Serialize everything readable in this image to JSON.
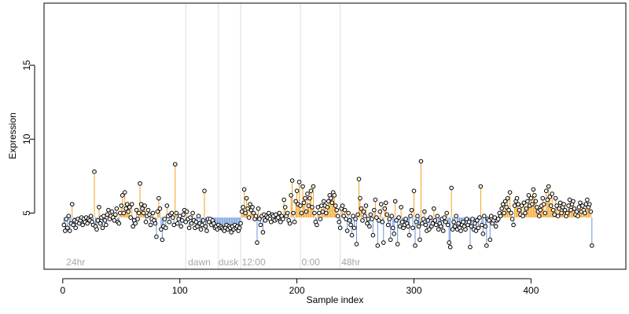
{
  "chart_data": {
    "type": "scatter",
    "title": "",
    "xlabel": "Sample index",
    "ylabel": "Expression",
    "xlim": [
      -16,
      481
    ],
    "ylim": [
      1.2,
      19.2
    ],
    "xticks": [
      0,
      100,
      200,
      300,
      400
    ],
    "yticks": [
      5,
      10,
      15
    ],
    "baseline": 4.7,
    "colors": {
      "above": "#f5a020",
      "below": "#6a95d8",
      "point_fill": "#ffffff",
      "point_stroke": "#000000",
      "divider": "#dddddd",
      "phase_text": "#a6a6a6"
    },
    "phase_dividers": [
      105,
      133,
      152,
      203,
      237
    ],
    "phase_labels": [
      {
        "x": 3,
        "text": "24hr"
      },
      {
        "x": 107,
        "text": "dawn"
      },
      {
        "x": 133,
        "text": "dusk"
      },
      {
        "x": 153,
        "text": "12:00"
      },
      {
        "x": 204,
        "text": "0:00"
      },
      {
        "x": 238,
        "text": "48hr"
      }
    ],
    "grid": false,
    "legend": "none",
    "series": [
      {
        "values": [
          4.2,
          3.8,
          4.6,
          4.0,
          4.8,
          3.8,
          4.3,
          5.6,
          4.2,
          4.5,
          4.0,
          4.4,
          4.6,
          4.3,
          4.5,
          4.7,
          4.2,
          4.6,
          4.4,
          4.7,
          4.3,
          4.6,
          4.5,
          4.8,
          4.4,
          4.2,
          7.8,
          4.1,
          3.9,
          4.5,
          5.4,
          4.3,
          4.7,
          4.0,
          4.8,
          4.5,
          4.2,
          4.9,
          5.2,
          4.6,
          4.8,
          5.1,
          4.7,
          4.5,
          4.9,
          5.3,
          4.4,
          4.3,
          5.0,
          5.5,
          6.2,
          5.0,
          6.4,
          5.3,
          5.6,
          5.1,
          5.4,
          4.7,
          5.6,
          4.1,
          4.5,
          4.3,
          5.2,
          4.6,
          5.0,
          7.0,
          5.6,
          5.3,
          5.0,
          5.5,
          4.4,
          4.8,
          5.2,
          4.9,
          4.2,
          4.6,
          5.0,
          4.5,
          4.3,
          3.4,
          5.1,
          6.0,
          5.3,
          3.9,
          3.2,
          4.1,
          4.6,
          4.0,
          5.5,
          4.8,
          4.4,
          4.9,
          5.0,
          4.7,
          4.2,
          8.3,
          5.0,
          4.3,
          4.6,
          4.8,
          4.1,
          4.5,
          4.9,
          5.2,
          4.4,
          5.1,
          4.6,
          4.0,
          4.7,
          4.3,
          5.0,
          4.5,
          4.0,
          4.4,
          4.1,
          4.8,
          4.3,
          3.9,
          4.2,
          4.5,
          6.5,
          4.1,
          3.8,
          4.6,
          4.4,
          4.6,
          4.2,
          4.5,
          4.3,
          4.0,
          4.1,
          3.9,
          4.2,
          4.0,
          4.1,
          4.0,
          3.9,
          3.8,
          4.0,
          4.2,
          3.9,
          4.1,
          4.0,
          3.7,
          4.1,
          3.9,
          4.2,
          4.0,
          4.1,
          3.8,
          4.0,
          4.3,
          5.1,
          5.4,
          6.6,
          5.0,
          6.0,
          5.3,
          4.7,
          5.6,
          5.2,
          5.4,
          5.0,
          4.6,
          4.8,
          3.0,
          5.3,
          4.6,
          4.2,
          4.8,
          3.7,
          4.9,
          4.5,
          4.8,
          4.7,
          5.0,
          4.6,
          4.4,
          4.9,
          4.8,
          4.5,
          4.9,
          4.6,
          4.7,
          5.0,
          4.4,
          4.8,
          4.6,
          5.9,
          5.4,
          4.8,
          5.0,
          4.5,
          4.3,
          6.2,
          7.2,
          5.0,
          4.4,
          5.8,
          6.5,
          5.6,
          7.1,
          5.5,
          5.0,
          6.8,
          5.7,
          6.0,
          5.1,
          6.3,
          5.5,
          6.0,
          6.5,
          5.4,
          6.8,
          5.0,
          4.4,
          4.2,
          5.4,
          5.0,
          4.6,
          5.5,
          5.1,
          5.8,
          5.5,
          5.0,
          5.4,
          5.8,
          6.2,
          6.0,
          5.7,
          6.4,
          6.2,
          5.5,
          5.2,
          4.8,
          4.4,
          4.0,
          5.3,
          5.5,
          4.8,
          5.2,
          4.6,
          3.8,
          5.0,
          4.5,
          4.2,
          3.5,
          4.8,
          4.0,
          4.6,
          2.9,
          4.9,
          7.3,
          6.0,
          5.3,
          4.5,
          5.1,
          4.8,
          5.5,
          4.3,
          4.6,
          4.1,
          4.9,
          4.6,
          3.5,
          5.2,
          5.9,
          4.7,
          2.8,
          4.5,
          5.1,
          5.6,
          4.4,
          3.0,
          5.3,
          5.7,
          4.9,
          4.2,
          4.6,
          3.2,
          4.8,
          4.0,
          3.6,
          5.8,
          4.5,
          2.9,
          4.7,
          4.1,
          5.4,
          4.4,
          4.0,
          4.2,
          4.6,
          4.3,
          4.1,
          3.5,
          4.8,
          5.2,
          4.0,
          6.5,
          2.8,
          4.4,
          4.8,
          4.1,
          3.2,
          8.5,
          4.3,
          4.6,
          5.1,
          4.2,
          3.8,
          4.5,
          3.9,
          4.7,
          4.1,
          4.3,
          5.3,
          4.5,
          4.2,
          4.8,
          3.9,
          4.3,
          4.1,
          4.6,
          3.8,
          4.7,
          4.4,
          5.0,
          4.2,
          3.0,
          2.7,
          6.7,
          3.9,
          4.4,
          4.1,
          4.8,
          3.9,
          4.3,
          4.0,
          3.8,
          4.2,
          4.4,
          4.1,
          3.9,
          4.6,
          4.2,
          4.4,
          2.7,
          4.1,
          4.6,
          3.9,
          4.3,
          3.8,
          4.5,
          4.0,
          4.7,
          6.8,
          4.2,
          3.6,
          4.8,
          4.1,
          2.8,
          4.6,
          4.5,
          3.2,
          4.8,
          4.3,
          4.5,
          4.7,
          4.1,
          4.5,
          4.6,
          5.0,
          4.8,
          5.3,
          5.6,
          5.0,
          5.8,
          5.4,
          6.0,
          5.2,
          6.4,
          5.0,
          4.6,
          4.2,
          5.5,
          5.8,
          6.0,
          5.6,
          5.2,
          4.9,
          5.5,
          4.8,
          5.7,
          5.0,
          5.3,
          5.8,
          6.2,
          5.5,
          6.0,
          5.6,
          6.6,
          6.2,
          5.8,
          5.4,
          5.1,
          4.8,
          5.2,
          5.5,
          6.0,
          5.6,
          5.0,
          6.5,
          5.9,
          6.8,
          6.1,
          5.5,
          6.3,
          5.2,
          4.9,
          6.0,
          5.5,
          4.8,
          5.3,
          5.7,
          5.0,
          5.4,
          5.6,
          5.2,
          4.8,
          5.0,
          5.5,
          5.9,
          5.2,
          5.6,
          5.8,
          5.3,
          4.9,
          5.1,
          4.8,
          5.4,
          5.7,
          5.1,
          5.5,
          5.2,
          5.0,
          5.6,
          5.9,
          5.4,
          5.6,
          5.1,
          2.8
        ]
      }
    ]
  }
}
